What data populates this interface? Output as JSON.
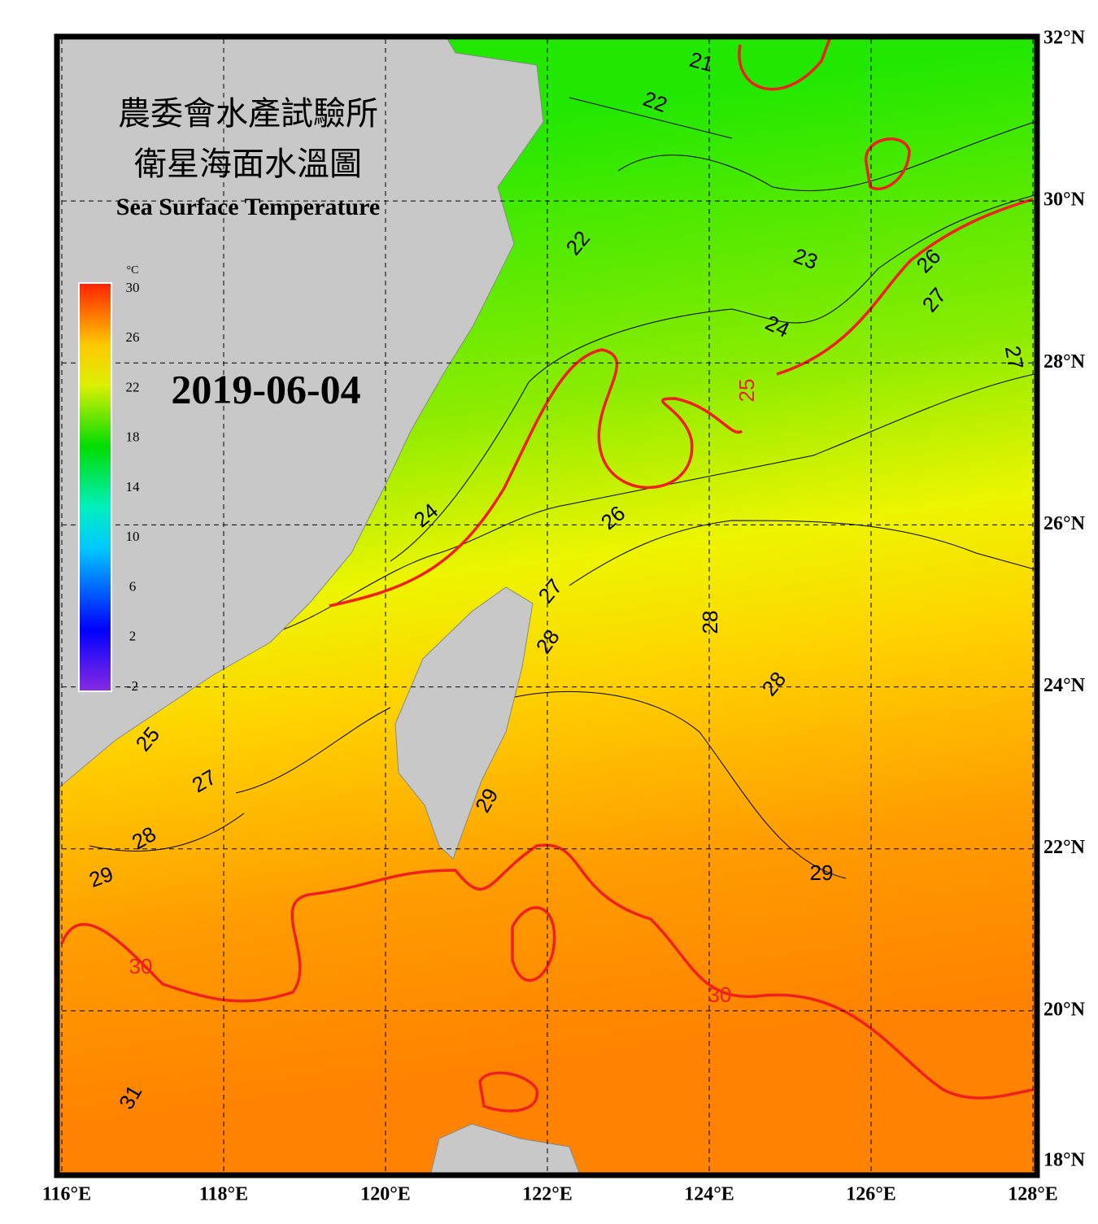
{
  "header": {
    "title_zh_1": "農委會水產試驗所",
    "title_zh_2": "衛星海面水溫圖",
    "title_en": "Sea Surface Temperature"
  },
  "date": "2019-06-04",
  "colorbar": {
    "unit": "°C",
    "range": [
      -2,
      30
    ],
    "ticks": [
      30,
      26,
      22,
      18,
      14,
      10,
      6,
      2,
      -2
    ]
  },
  "map": {
    "xlim": [
      116,
      128
    ],
    "ylim": [
      18,
      32
    ],
    "xticks": [
      {
        "value": 116,
        "label": "116°E"
      },
      {
        "value": 118,
        "label": "118°E"
      },
      {
        "value": 120,
        "label": "120°E"
      },
      {
        "value": 122,
        "label": "122°E"
      },
      {
        "value": 124,
        "label": "124°E"
      },
      {
        "value": 126,
        "label": "126°E"
      },
      {
        "value": 128,
        "label": "128°E"
      }
    ],
    "yticks": [
      {
        "value": 18,
        "label": "18°N"
      },
      {
        "value": 20,
        "label": "20°N"
      },
      {
        "value": 22,
        "label": "22°N"
      },
      {
        "value": 24,
        "label": "24°N"
      },
      {
        "value": 26,
        "label": "26°N"
      },
      {
        "value": 28,
        "label": "28°N"
      },
      {
        "value": 30,
        "label": "30°N"
      },
      {
        "value": 32,
        "label": "32°N"
      }
    ],
    "contour_labels": [
      21,
      22,
      22,
      23,
      24,
      25,
      26,
      27,
      27,
      24,
      26,
      27,
      28,
      28,
      28,
      29,
      25,
      27,
      28,
      29,
      29,
      30,
      30,
      31
    ]
  }
}
